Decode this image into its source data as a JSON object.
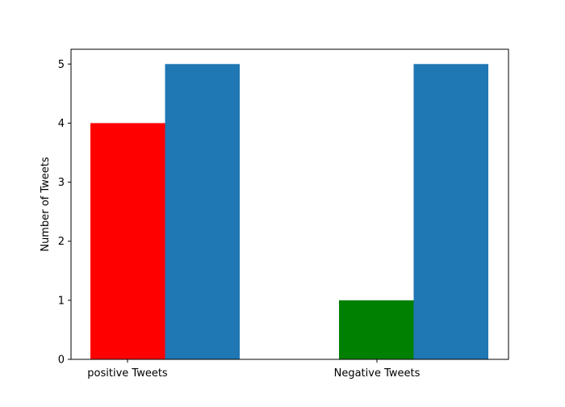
{
  "chart_data": {
    "type": "bar",
    "title": "",
    "xlabel": "",
    "ylabel": "Number of Tweets",
    "categories": [
      "positive Tweets",
      "Negative Tweets"
    ],
    "series": [
      {
        "values": [
          4,
          1
        ],
        "colors": [
          "#ff0000",
          "#008000"
        ]
      },
      {
        "values": [
          5,
          5
        ],
        "colors": [
          "#1f77b4",
          "#1f77b4"
        ]
      }
    ],
    "ylim": [
      0,
      5.25
    ],
    "yticks": [
      "0",
      "1",
      "2",
      "3",
      "4",
      "5"
    ],
    "grid": false,
    "legend": "none"
  }
}
